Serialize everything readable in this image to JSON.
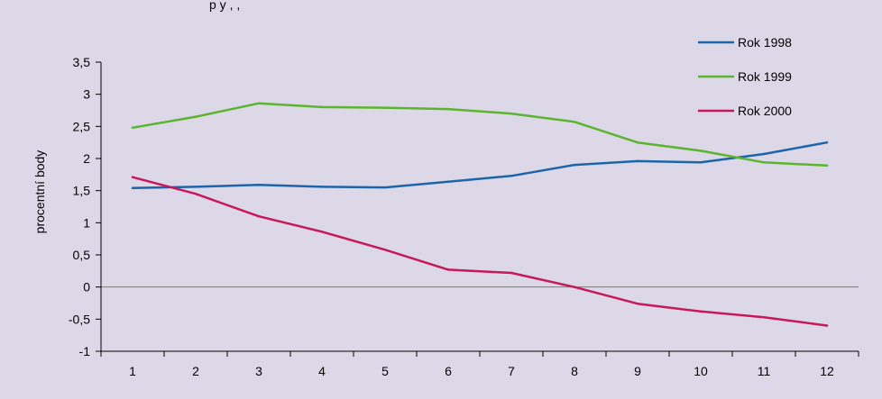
{
  "colors": {
    "background": "#dcd8e8",
    "axis": "#000000",
    "zero_line": "#7a7a7a"
  },
  "chart_data": {
    "type": "line",
    "title": "p                y                  ,                ,",
    "xlabel": "",
    "ylabel": "procentní body",
    "ylim": [
      -1,
      3.5
    ],
    "y_ticks": [
      -1,
      -0.5,
      0,
      0.5,
      1,
      1.5,
      2,
      2.5,
      3,
      3.5
    ],
    "y_tick_labels": [
      "-1",
      "-0,5",
      "0",
      "0,5",
      "1",
      "1,5",
      "2",
      "2,5",
      "3",
      "3,5"
    ],
    "categories": [
      "1",
      "2",
      "3",
      "4",
      "5",
      "6",
      "7",
      "8",
      "9",
      "10",
      "11",
      "12"
    ],
    "grid": false,
    "legend_position": "top-right",
    "series": [
      {
        "name": "Rok 1998",
        "color": "#1e64a8",
        "values": [
          1.54,
          1.56,
          1.59,
          1.56,
          1.55,
          1.64,
          1.73,
          1.9,
          1.96,
          1.94,
          2.07,
          2.25
        ]
      },
      {
        "name": "Rok 1999",
        "color": "#5bb52e",
        "values": [
          2.48,
          2.65,
          2.86,
          2.8,
          2.79,
          2.77,
          2.7,
          2.57,
          2.25,
          2.12,
          1.94,
          1.89
        ]
      },
      {
        "name": "Rok 2000",
        "color": "#c8185a",
        "values": [
          1.71,
          1.45,
          1.1,
          0.86,
          0.58,
          0.27,
          0.22,
          0.0,
          -0.26,
          -0.38,
          -0.47,
          -0.6
        ]
      }
    ]
  }
}
